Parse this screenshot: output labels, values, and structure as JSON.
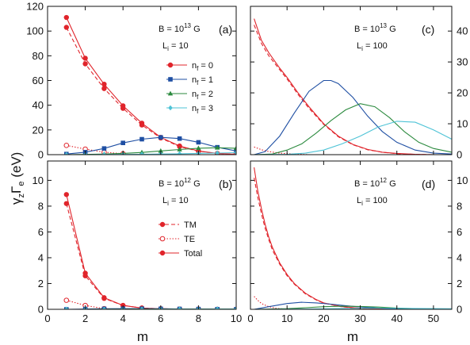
{
  "figure": {
    "x_label": "m",
    "y_label_main": "γ",
    "y_label_sub1": "z",
    "y_label_mid": "Γ",
    "y_label_sub2": "e",
    "y_label_unit": " (eV)"
  },
  "colors": {
    "n0": "#e0242b",
    "n1": "#1f4fa3",
    "n2": "#2b8a3e",
    "n3": "#4ec3d6"
  },
  "chart_data": [
    {
      "panel": "a",
      "type": "line",
      "label": "(a)",
      "annotation_B": "B = 10",
      "annotation_B_exp": "13",
      "annotation_B_unit": " G",
      "annotation_L": "L",
      "annotation_L_sub": "i",
      "annotation_L_val": " = 10",
      "xlim": [
        0,
        10
      ],
      "ylim": [
        0,
        120
      ],
      "xticks": [
        0,
        2,
        4,
        6,
        8,
        10
      ],
      "yticks": [
        0,
        20,
        40,
        60,
        80,
        100,
        120
      ],
      "legend": {
        "position": "center-right",
        "entries": [
          {
            "text": "n",
            "sub": "f",
            "rest": " = 0",
            "color_key": "n0",
            "marker": "circle"
          },
          {
            "text": "n",
            "sub": "f",
            "rest": " = 1",
            "color_key": "n1",
            "marker": "square"
          },
          {
            "text": "n",
            "sub": "f",
            "rest": " = 2",
            "color_key": "n2",
            "marker": "triangle"
          },
          {
            "text": "n",
            "sub": "f",
            "rest": " = 3",
            "color_key": "n3",
            "marker": "diamond"
          }
        ]
      },
      "series": [
        {
          "color_key": "n0",
          "style": "solid",
          "marker": "circle",
          "x": [
            1,
            2,
            3,
            4,
            5,
            6,
            7,
            8,
            9,
            10
          ],
          "y": [
            111,
            78,
            57,
            39.5,
            25.5,
            14,
            7,
            3,
            1,
            0.3
          ]
        },
        {
          "color_key": "n0",
          "style": "dashed",
          "marker": "circle",
          "x": [
            1,
            2,
            3,
            4,
            5,
            6,
            7,
            8,
            9,
            10
          ],
          "y": [
            103,
            73.5,
            53.5,
            37.5,
            24,
            13.5,
            6.5,
            2.8,
            0.9,
            0.3
          ]
        },
        {
          "color_key": "n0",
          "style": "dotted",
          "marker": "open-circle",
          "x": [
            1,
            2,
            3,
            4
          ],
          "y": [
            7.5,
            4.5,
            2,
            0.8
          ]
        },
        {
          "color_key": "n1",
          "style": "solid",
          "marker": "square",
          "x": [
            1,
            2,
            3,
            4,
            5,
            6,
            7,
            8,
            9,
            10
          ],
          "y": [
            0.5,
            2,
            5,
            9.5,
            12.5,
            14,
            13,
            10,
            6,
            3
          ]
        },
        {
          "color_key": "n2",
          "style": "solid",
          "marker": "triangle",
          "x": [
            1,
            2,
            3,
            4,
            5,
            6,
            7,
            8,
            9,
            10
          ],
          "y": [
            0,
            0.2,
            0.5,
            1,
            1.8,
            3,
            4.2,
            5.2,
            5.6,
            5.2
          ]
        },
        {
          "color_key": "n3",
          "style": "solid",
          "marker": "diamond",
          "x": [
            1,
            2,
            3,
            4,
            5,
            6,
            7,
            8,
            9,
            10
          ],
          "y": [
            0,
            0,
            0.1,
            0.2,
            0.3,
            0.5,
            0.7,
            1,
            1.3,
            1.6
          ]
        }
      ]
    },
    {
      "panel": "c",
      "type": "line",
      "label": "(c)",
      "annotation_B": "B = 10",
      "annotation_B_exp": "13",
      "annotation_B_unit": " G",
      "annotation_L": "L",
      "annotation_L_sub": "i",
      "annotation_L_val": " = 100",
      "xlim": [
        0,
        55
      ],
      "ylim": [
        0,
        48
      ],
      "xticks": [
        0,
        10,
        20,
        30,
        40,
        50
      ],
      "yticks": [
        0,
        10,
        20,
        30,
        40
      ],
      "y_axis_side": "right",
      "series": [
        {
          "color_key": "n0",
          "style": "solid",
          "x": [
            1,
            3,
            5,
            8,
            10,
            13,
            16,
            20,
            24,
            28,
            32,
            36,
            40,
            45,
            50,
            55
          ],
          "y": [
            44,
            37,
            33,
            28,
            25,
            20,
            15.5,
            10,
            6,
            3.3,
            1.7,
            0.8,
            0.4,
            0.1,
            0,
            0
          ]
        },
        {
          "color_key": "n0",
          "style": "dashed",
          "x": [
            1,
            3,
            5,
            8,
            10,
            13,
            16,
            20,
            24,
            28,
            32,
            36,
            40,
            45,
            50,
            55
          ],
          "y": [
            42,
            36,
            32,
            27.5,
            24.5,
            19.5,
            15,
            9.8,
            5.8,
            3.2,
            1.6,
            0.8,
            0.3,
            0.1,
            0,
            0
          ]
        },
        {
          "color_key": "n0",
          "style": "dotted",
          "x": [
            1,
            3,
            5,
            8,
            12,
            16
          ],
          "y": [
            2.5,
            1.6,
            1,
            0.5,
            0.2,
            0
          ]
        },
        {
          "color_key": "n1",
          "style": "solid",
          "x": [
            1,
            4,
            8,
            12,
            16,
            20,
            22,
            24,
            28,
            32,
            36,
            40,
            45,
            50,
            55
          ],
          "y": [
            0,
            1,
            6,
            13.5,
            20.5,
            24,
            24,
            23,
            18.5,
            12.5,
            7.5,
            4,
            1.5,
            0.5,
            0.2
          ]
        },
        {
          "color_key": "n2",
          "style": "solid",
          "x": [
            1,
            6,
            10,
            14,
            18,
            22,
            26,
            30,
            34,
            38,
            42,
            46,
            50,
            55
          ],
          "y": [
            0,
            0.2,
            1.5,
            3.5,
            7,
            11,
            14.5,
            16.5,
            15.5,
            12,
            7.5,
            4,
            2,
            0.8
          ]
        },
        {
          "color_key": "n3",
          "style": "solid",
          "x": [
            1,
            10,
            15,
            20,
            25,
            30,
            35,
            40,
            45,
            50,
            55
          ],
          "y": [
            0,
            0.1,
            0.5,
            1.5,
            3.5,
            6,
            9,
            10.8,
            10.5,
            8,
            5
          ]
        }
      ]
    },
    {
      "panel": "b",
      "type": "line",
      "label": "(b)",
      "annotation_B": "B = 10",
      "annotation_B_exp": "12",
      "annotation_B_unit": " G",
      "annotation_L": "L",
      "annotation_L_sub": "i",
      "annotation_L_val": " = 10",
      "xlim": [
        0,
        10
      ],
      "ylim": [
        0,
        11.5
      ],
      "xticks": [
        0,
        2,
        4,
        6,
        8,
        10
      ],
      "yticks": [
        0,
        2,
        4,
        6,
        8,
        10
      ],
      "legend": {
        "position": "center",
        "entries": [
          {
            "text": "TM",
            "style": "dashed",
            "marker": "circle"
          },
          {
            "text": "TE",
            "style": "dotted",
            "marker": "open-circle"
          },
          {
            "text": "Total",
            "style": "solid",
            "marker": "circle"
          }
        ]
      },
      "series": [
        {
          "color_key": "n0",
          "style": "solid",
          "marker": "circle",
          "x": [
            1,
            2,
            3,
            4,
            5,
            6,
            7,
            8,
            9,
            10
          ],
          "y": [
            8.9,
            2.8,
            0.9,
            0.3,
            0.1,
            0.04,
            0.02,
            0.01,
            0,
            0
          ]
        },
        {
          "color_key": "n0",
          "style": "dashed",
          "marker": "circle",
          "x": [
            1,
            2,
            3,
            4,
            5,
            6,
            7,
            8,
            9,
            10
          ],
          "y": [
            8.2,
            2.6,
            0.85,
            0.3,
            0.1,
            0.04,
            0.02,
            0.01,
            0,
            0
          ]
        },
        {
          "color_key": "n0",
          "style": "dotted",
          "marker": "open-circle",
          "x": [
            1,
            2,
            3
          ],
          "y": [
            0.7,
            0.3,
            0.05
          ]
        },
        {
          "color_key": "n1",
          "style": "solid",
          "marker": "square",
          "x": [
            1,
            2,
            3,
            4,
            5,
            6,
            7,
            8,
            9,
            10
          ],
          "y": [
            0,
            0.02,
            0.04,
            0.05,
            0.05,
            0.04,
            0.03,
            0.02,
            0.01,
            0.01
          ]
        },
        {
          "color_key": "n2",
          "style": "solid",
          "marker": "triangle",
          "x": [
            1,
            2,
            3,
            4,
            5,
            6,
            7,
            8,
            9,
            10
          ],
          "y": [
            0,
            0,
            0.01,
            0.01,
            0.02,
            0.02,
            0.02,
            0.02,
            0.02,
            0.02
          ]
        },
        {
          "color_key": "n3",
          "style": "solid",
          "marker": "diamond",
          "x": [
            1,
            2,
            3,
            4,
            5,
            6,
            7,
            8,
            9,
            10
          ],
          "y": [
            0,
            0,
            0,
            0,
            0,
            0.01,
            0.01,
            0.01,
            0.01,
            0.01
          ]
        }
      ]
    },
    {
      "panel": "d",
      "type": "line",
      "label": "(d)",
      "annotation_B": "B = 10",
      "annotation_B_exp": "12",
      "annotation_B_unit": " G",
      "annotation_L": "L",
      "annotation_L_sub": "i",
      "annotation_L_val": " = 100",
      "xlim": [
        0,
        55
      ],
      "ylim": [
        0,
        11.5
      ],
      "xticks": [
        0,
        10,
        20,
        30,
        40,
        50
      ],
      "yticks": [
        0,
        2,
        4,
        6,
        8,
        10
      ],
      "y_axis_side": "right",
      "series": [
        {
          "color_key": "n0",
          "style": "solid",
          "x": [
            1,
            2,
            3,
            4,
            5,
            6,
            8,
            10,
            12,
            15,
            18,
            20,
            25,
            30,
            40,
            55
          ],
          "y": [
            11,
            9.2,
            7.8,
            6.6,
            5.6,
            4.8,
            3.6,
            2.7,
            2,
            1.25,
            0.75,
            0.5,
            0.2,
            0.08,
            0.02,
            0
          ]
        },
        {
          "color_key": "n0",
          "style": "dashed",
          "x": [
            1,
            2,
            3,
            4,
            5,
            6,
            8,
            10,
            12,
            15,
            18,
            20,
            25,
            30,
            40,
            55
          ],
          "y": [
            10.2,
            8.7,
            7.4,
            6.3,
            5.4,
            4.6,
            3.5,
            2.6,
            1.95,
            1.2,
            0.72,
            0.48,
            0.19,
            0.07,
            0.02,
            0
          ]
        },
        {
          "color_key": "n0",
          "style": "dotted",
          "x": [
            1,
            2,
            3,
            5,
            7,
            10
          ],
          "y": [
            1,
            0.7,
            0.45,
            0.2,
            0.08,
            0
          ]
        },
        {
          "color_key": "n1",
          "style": "solid",
          "x": [
            1,
            5,
            10,
            14,
            18,
            22,
            26,
            30,
            36,
            42,
            50,
            55
          ],
          "y": [
            0,
            0.2,
            0.45,
            0.55,
            0.5,
            0.4,
            0.28,
            0.18,
            0.08,
            0.03,
            0.01,
            0
          ]
        },
        {
          "color_key": "n2",
          "style": "solid",
          "x": [
            1,
            10,
            15,
            20,
            25,
            30,
            35,
            40,
            45,
            55
          ],
          "y": [
            0,
            0.05,
            0.12,
            0.2,
            0.24,
            0.22,
            0.17,
            0.1,
            0.05,
            0.01
          ]
        },
        {
          "color_key": "n3",
          "style": "solid",
          "x": [
            1,
            15,
            25,
            35,
            45,
            55
          ],
          "y": [
            0,
            0.02,
            0.06,
            0.09,
            0.07,
            0.04
          ]
        }
      ]
    }
  ]
}
